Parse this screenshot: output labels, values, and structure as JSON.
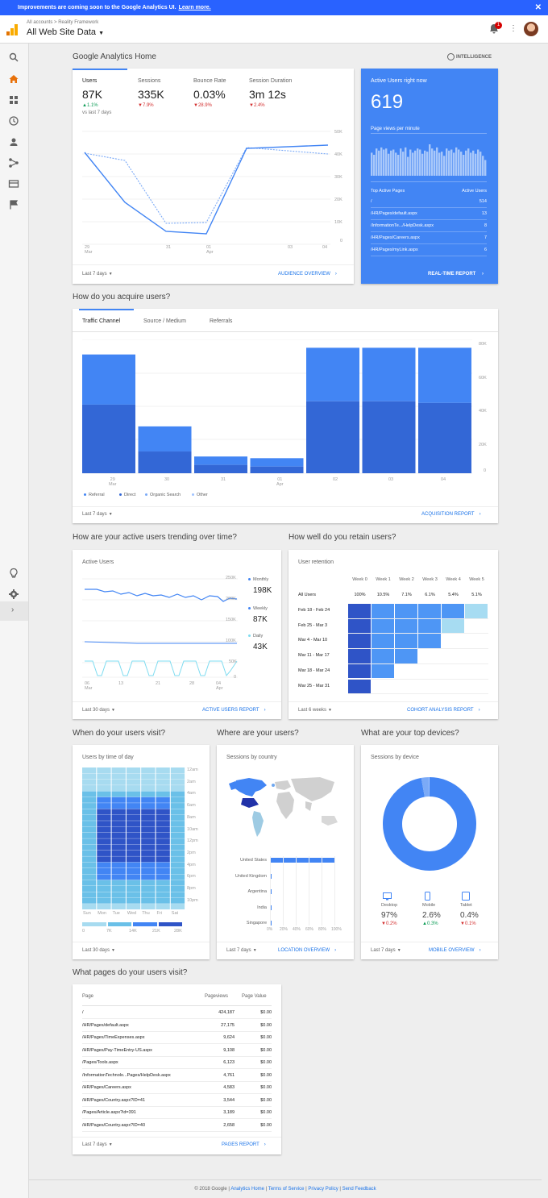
{
  "banner": {
    "text": "Improvements are coming soon to the Google Analytics UI.",
    "link": "Learn more."
  },
  "header": {
    "breadcrumb": "All accounts > Reality Framework",
    "property": "All Web Site Data",
    "notification_count": "1"
  },
  "colors": {
    "accent": "#4285f4",
    "dark": "#3367d6",
    "banner": "#2962ff",
    "realtime": "#4285f4"
  },
  "home": {
    "title": "Google Analytics Home",
    "intelligence": "INTELLIGENCE"
  },
  "overview": {
    "tabs": [
      {
        "label": "Users",
        "value": "87K",
        "change": "1.1%",
        "dir": "up"
      },
      {
        "label": "Sessions",
        "value": "335K",
        "change": "7.9%",
        "dir": "down"
      },
      {
        "label": "Bounce Rate",
        "value": "0.03%",
        "change": "28.9%",
        "dir": "down"
      },
      {
        "label": "Session Duration",
        "value": "3m 12s",
        "change": "2.4%",
        "dir": "down"
      }
    ],
    "vs": "vs last 7 days",
    "date_range": "Last 7 days",
    "link": "AUDIENCE OVERVIEW",
    "y_ticks": [
      "50K",
      "40K",
      "30K",
      "20K",
      "10K",
      "0"
    ],
    "x_ticks": [
      {
        "d": "29",
        "m": "Mar"
      },
      {
        "d": "30",
        "m": ""
      },
      {
        "d": "31",
        "m": ""
      },
      {
        "d": "01",
        "m": "Apr"
      },
      {
        "d": "02",
        "m": ""
      },
      {
        "d": "03",
        "m": ""
      },
      {
        "d": "04",
        "m": ""
      }
    ]
  },
  "realtime": {
    "title": "Active Users right now",
    "count": "619",
    "pv_label": "Page views per minute",
    "col1": "Top Active Pages",
    "col2": "Active Users",
    "pages": [
      {
        "page": "/",
        "users": "514"
      },
      {
        "page": "/HR/Pages/default.aspx",
        "users": "13"
      },
      {
        "page": "/InformationTe.../HelpDesk.aspx",
        "users": "8"
      },
      {
        "page": "/HR/Pages/Careers.aspx",
        "users": "7"
      },
      {
        "page": "/HR/Pages/myLink.aspx",
        "users": "6"
      }
    ],
    "link": "REAL-TIME REPORT"
  },
  "acquire": {
    "title": "How do you acquire users?",
    "tabs": [
      "Traffic Channel",
      "Source / Medium",
      "Referrals"
    ],
    "date_range": "Last 7 days",
    "link": "ACQUISITION REPORT",
    "legend": [
      "Referral",
      "Direct",
      "Organic Search",
      "Other"
    ],
    "legend_colors": [
      "#4285f4",
      "#3367d6",
      "#7baaf7",
      "#a0c3ff"
    ],
    "y_ticks": [
      "80K",
      "60K",
      "40K",
      "20K",
      "0"
    ],
    "x_ticks": [
      {
        "d": "29",
        "m": "Mar"
      },
      {
        "d": "30",
        "m": ""
      },
      {
        "d": "31",
        "m": ""
      },
      {
        "d": "01",
        "m": "Apr"
      },
      {
        "d": "02",
        "m": ""
      },
      {
        "d": "03",
        "m": ""
      },
      {
        "d": "04",
        "m": ""
      }
    ]
  },
  "trending": {
    "title": "How are your active users trending over time?",
    "card_title": "Active Users",
    "y_ticks": [
      "250K",
      "200K",
      "150K",
      "100K",
      "50K",
      "0"
    ],
    "x_ticks": [
      {
        "d": "06",
        "m": "Mar"
      },
      {
        "d": "13",
        "m": ""
      },
      {
        "d": "21",
        "m": ""
      },
      {
        "d": "28",
        "m": ""
      },
      {
        "d": "04",
        "m": "Apr"
      }
    ],
    "legend": [
      {
        "label": "Monthly",
        "value": "198K"
      },
      {
        "label": "Weekly",
        "value": "87K"
      },
      {
        "label": "Daily",
        "value": "43K"
      }
    ],
    "date_range": "Last 30 days",
    "link": "ACTIVE USERS REPORT"
  },
  "retain": {
    "title": "How well do you retain users?",
    "card_title": "User retention",
    "weeks": [
      "Week 0",
      "Week 1",
      "Week 2",
      "Week 3",
      "Week 4",
      "Week 5"
    ],
    "all_label": "All Users",
    "all_values": [
      "100%",
      "10.5%",
      "7.1%",
      "6.1%",
      "5.4%",
      "5.1%"
    ],
    "rows": [
      "Feb 18 - Feb 24",
      "Feb 25 - Mar 3",
      "Mar 4 - Mar 10",
      "Mar 11 - Mar 17",
      "Mar 18 - Mar 24",
      "Mar 25 - Mar 31"
    ],
    "date_range": "Last 6 weeks",
    "link": "COHORT ANALYSIS REPORT"
  },
  "when": {
    "title": "When do your users visit?",
    "card_title": "Users by time of day",
    "hours": [
      "12am",
      "2am",
      "4am",
      "6am",
      "8am",
      "10am",
      "12pm",
      "2pm",
      "4pm",
      "6pm",
      "8pm",
      "10pm"
    ],
    "days": [
      "Sun",
      "Mon",
      "Tue",
      "Wed",
      "Thu",
      "Fri",
      "Sat"
    ],
    "scale": [
      "0",
      "7K",
      "14K",
      "21K",
      "28K"
    ],
    "date_range": "Last 30 days"
  },
  "where": {
    "title": "Where are your users?",
    "card_title": "Sessions by country",
    "countries": [
      {
        "name": "United States",
        "pct": 1.0
      },
      {
        "name": "United Kingdom",
        "pct": 0.01
      },
      {
        "name": "Argentina",
        "pct": 0.005
      },
      {
        "name": "India",
        "pct": 0.002
      },
      {
        "name": "Singapore",
        "pct": 0.001
      }
    ],
    "x_ticks": [
      "0%",
      "20%",
      "40%",
      "60%",
      "80%",
      "100%"
    ],
    "date_range": "Last 7 days",
    "link": "LOCATION OVERVIEW"
  },
  "devices": {
    "title": "What are your top devices?",
    "card_title": "Sessions by device",
    "items": [
      {
        "label": "Desktop",
        "value": "97%",
        "change": "0.2%",
        "dir": "down"
      },
      {
        "label": "Mobile",
        "value": "2.6%",
        "change": "0.3%",
        "dir": "up"
      },
      {
        "label": "Tablet",
        "value": "0.4%",
        "change": "0.1%",
        "dir": "down"
      }
    ],
    "date_range": "Last 7 days",
    "link": "MOBILE OVERVIEW"
  },
  "pages": {
    "title": "What pages do your users visit?",
    "headers": [
      "Page",
      "Pageviews",
      "Page Value"
    ],
    "rows": [
      [
        "/",
        "424,187",
        "$0.00"
      ],
      [
        "/HR/Pages/default.aspx",
        "27,175",
        "$0.00"
      ],
      [
        "/HR/Pages/TimeExpenses.aspx",
        "9,624",
        "$0.00"
      ],
      [
        "/HR/Pages/Pay-TimeEntry-US.aspx",
        "9,108",
        "$0.00"
      ],
      [
        "/Pages/Tools.aspx",
        "6,123",
        "$0.00"
      ],
      [
        "/InformationTechnolo...Pages/HelpDesk.aspx",
        "4,761",
        "$0.00"
      ],
      [
        "/HR/Pages/Careers.aspx",
        "4,583",
        "$0.00"
      ],
      [
        "/HR/Pages/Country.aspx?ID=41",
        "3,544",
        "$0.00"
      ],
      [
        "/Pages/Article.aspx?id=391",
        "3,189",
        "$0.00"
      ],
      [
        "/HR/Pages/Country.aspx?ID=40",
        "2,658",
        "$0.00"
      ]
    ],
    "date_range": "Last 7 days",
    "link": "PAGES REPORT"
  },
  "footer": {
    "copyright": "© 2018 Google",
    "links": [
      "Analytics Home",
      "Terms of Service",
      "Privacy Policy",
      "Send Feedback"
    ]
  }
}
